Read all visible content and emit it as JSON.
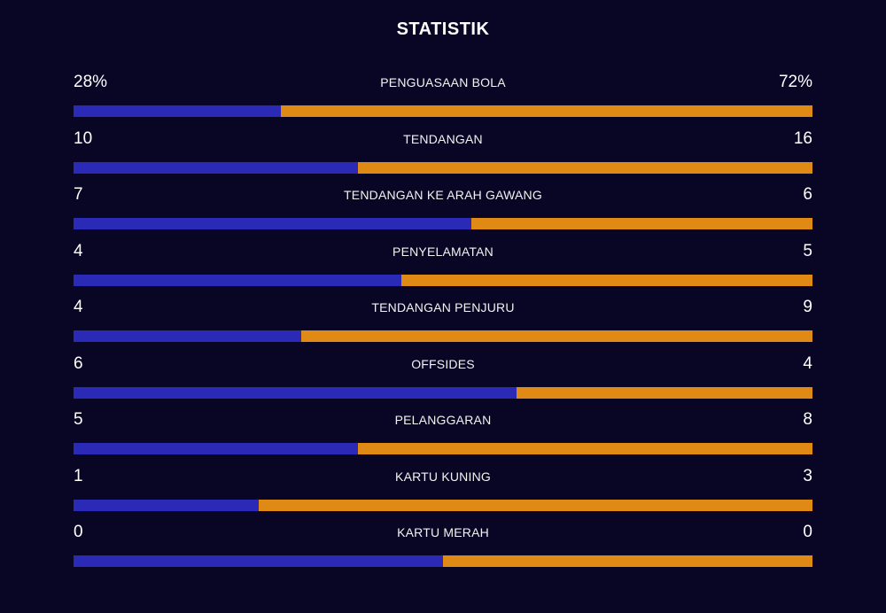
{
  "title": "STATISTIK",
  "colors": {
    "background": "#080624",
    "home": "#2b2ab6",
    "away": "#e08a16"
  },
  "stats": [
    {
      "name": "PENGUASAAN BOLA",
      "home": "28%",
      "away": "72%",
      "home_share": 0.28
    },
    {
      "name": "TENDANGAN",
      "home": "10",
      "away": "16",
      "home_share": 0.385
    },
    {
      "name": "TENDANGAN KE ARAH GAWANG",
      "home": "7",
      "away": "6",
      "home_share": 0.538
    },
    {
      "name": "PENYELAMATAN",
      "home": "4",
      "away": "5",
      "home_share": 0.444
    },
    {
      "name": "TENDANGAN PENJURU",
      "home": "4",
      "away": "9",
      "home_share": 0.308
    },
    {
      "name": "OFFSIDES",
      "home": "6",
      "away": "4",
      "home_share": 0.6
    },
    {
      "name": "PELANGGARAN",
      "home": "5",
      "away": "8",
      "home_share": 0.385
    },
    {
      "name": "KARTU KUNING",
      "home": "1",
      "away": "3",
      "home_share": 0.25
    },
    {
      "name": "KARTU MERAH",
      "home": "0",
      "away": "0",
      "home_share": 0.5
    }
  ]
}
